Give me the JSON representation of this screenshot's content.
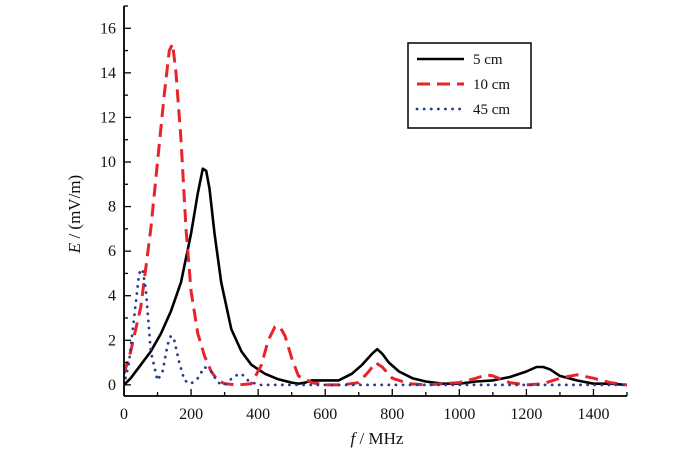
{
  "chart_data": {
    "type": "line",
    "xlabel": {
      "var": "f",
      "unit": " / MHz"
    },
    "ylabel": {
      "var": "E",
      "unit": " / (mV/m)"
    },
    "xlim": [
      0,
      1500
    ],
    "ylim": [
      -0.5,
      17
    ],
    "xticks": [
      0,
      200,
      400,
      600,
      800,
      1000,
      1200,
      1400
    ],
    "yticks": [
      0,
      2,
      4,
      6,
      8,
      10,
      12,
      14,
      16
    ],
    "grid": false,
    "legend_position": "top-right",
    "series": [
      {
        "name": "5 cm",
        "color": "#000000",
        "style": "solid",
        "x": [
          0,
          20,
          50,
          80,
          110,
          140,
          170,
          200,
          220,
          235,
          245,
          255,
          270,
          290,
          320,
          350,
          380,
          420,
          460,
          500,
          520,
          540,
          560,
          600,
          640,
          680,
          710,
          740,
          755,
          770,
          790,
          820,
          860,
          900,
          950,
          1000,
          1050,
          1100,
          1150,
          1200,
          1230,
          1250,
          1270,
          1300,
          1350,
          1400,
          1450,
          1500
        ],
        "y": [
          0,
          0.3,
          0.9,
          1.5,
          2.3,
          3.3,
          4.6,
          6.8,
          8.6,
          9.7,
          9.6,
          8.8,
          6.8,
          4.6,
          2.5,
          1.5,
          0.9,
          0.5,
          0.25,
          0.1,
          0.05,
          0.1,
          0.2,
          0.2,
          0.2,
          0.5,
          0.9,
          1.4,
          1.6,
          1.4,
          1.0,
          0.6,
          0.3,
          0.15,
          0.05,
          0.05,
          0.15,
          0.2,
          0.35,
          0.6,
          0.8,
          0.8,
          0.7,
          0.4,
          0.2,
          0.05,
          0.05,
          0.0
        ]
      },
      {
        "name": "10 cm",
        "color": "#e8232b",
        "style": "dashed",
        "x": [
          0,
          20,
          50,
          80,
          100,
          120,
          135,
          145,
          155,
          170,
          185,
          200,
          220,
          240,
          260,
          280,
          300,
          340,
          380,
          410,
          430,
          450,
          465,
          480,
          500,
          520,
          560,
          600,
          650,
          700,
          730,
          750,
          770,
          800,
          850,
          900,
          950,
          1000,
          1050,
          1080,
          1100,
          1150,
          1200,
          1250,
          1300,
          1350,
          1400,
          1450,
          1500
        ],
        "y": [
          0.5,
          1.5,
          3.5,
          7.0,
          10.0,
          13.0,
          15.0,
          15.3,
          14.0,
          11.0,
          7.0,
          4.2,
          2.3,
          1.3,
          0.6,
          0.2,
          0.05,
          0.0,
          0.05,
          0.9,
          2.0,
          2.6,
          2.6,
          2.2,
          1.2,
          0.4,
          0.1,
          0.0,
          0.0,
          0.1,
          0.6,
          1.0,
          0.8,
          0.3,
          0.05,
          0.0,
          0.05,
          0.1,
          0.3,
          0.45,
          0.4,
          0.1,
          0.0,
          0.05,
          0.3,
          0.45,
          0.3,
          0.1,
          0.0
        ]
      },
      {
        "name": "45 cm",
        "color": "#2a3c8f",
        "style": "dotted",
        "x": [
          0,
          15,
          30,
          45,
          55,
          65,
          80,
          100,
          115,
          130,
          140,
          150,
          165,
          180,
          200,
          220,
          240,
          260,
          280,
          300,
          330,
          350,
          370,
          400,
          450,
          500,
          600,
          700,
          800,
          900,
          1000,
          1100,
          1200,
          1300,
          1400,
          1500
        ],
        "y": [
          0.0,
          1.0,
          3.0,
          5.0,
          5.2,
          4.3,
          1.5,
          0.2,
          0.6,
          1.8,
          2.2,
          2.0,
          1.0,
          0.2,
          0.05,
          0.3,
          0.8,
          0.6,
          0.1,
          0.0,
          0.4,
          0.5,
          0.2,
          0.0,
          0.0,
          0.0,
          0.0,
          0.0,
          0.0,
          0.0,
          0.0,
          0.0,
          0.0,
          0.0,
          0.0,
          0.0
        ]
      }
    ]
  }
}
